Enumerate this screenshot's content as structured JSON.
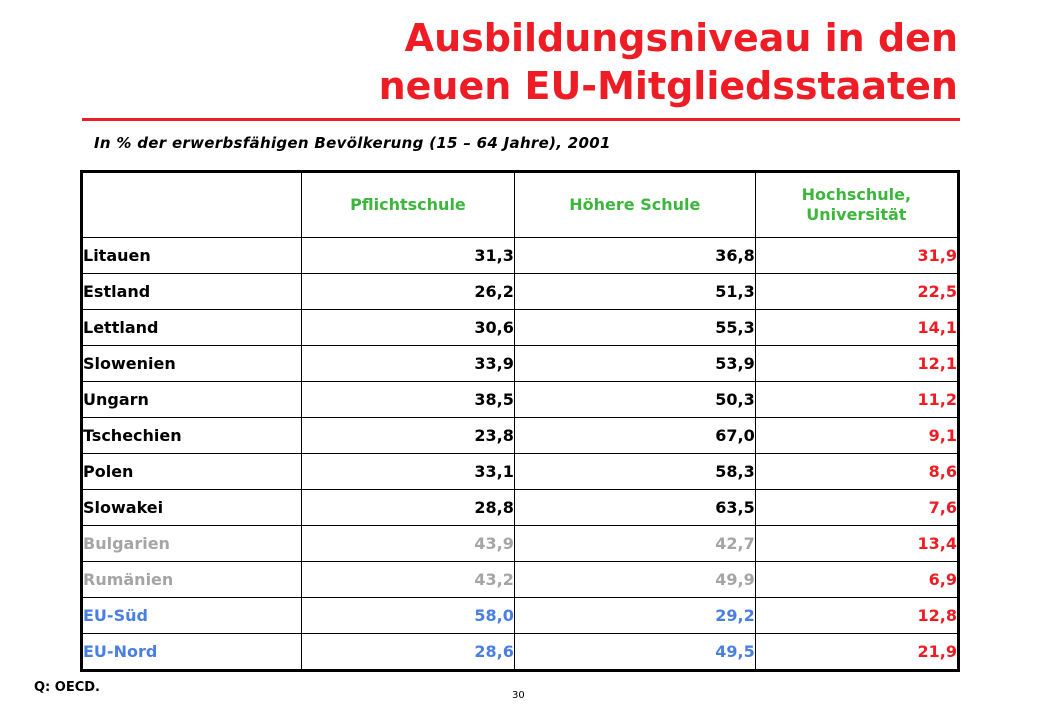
{
  "title": {
    "line1": "Ausbildungsniveau in den",
    "line2": "neuen EU-Mitgliedsstaaten"
  },
  "subtitle": "In % der erwerbsfähigen Bevölkerung (15 – 64 Jahre), 2001",
  "table": {
    "columns": [
      "Pflichtschule",
      "Höhere Schule",
      "Hochschule,",
      "Universität"
    ],
    "rows": [
      {
        "country": "Litauen",
        "v1": "31,3",
        "v2": "36,8",
        "v3": "31,9",
        "group": "black"
      },
      {
        "country": "Estland",
        "v1": "26,2",
        "v2": "51,3",
        "v3": "22,5",
        "group": "black"
      },
      {
        "country": "Lettland",
        "v1": "30,6",
        "v2": "55,3",
        "v3": "14,1",
        "group": "black"
      },
      {
        "country": "Slowenien",
        "v1": "33,9",
        "v2": "53,9",
        "v3": "12,1",
        "group": "black"
      },
      {
        "country": "Ungarn",
        "v1": "38,5",
        "v2": "50,3",
        "v3": "11,2",
        "group": "black"
      },
      {
        "country": "Tschechien",
        "v1": "23,8",
        "v2": "67,0",
        "v3": "9,1",
        "group": "black"
      },
      {
        "country": "Polen",
        "v1": "33,1",
        "v2": "58,3",
        "v3": "8,6",
        "group": "black"
      },
      {
        "country": "Slowakei",
        "v1": "28,8",
        "v2": "63,5",
        "v3": "7,6",
        "group": "black"
      },
      {
        "country": "Bulgarien",
        "v1": "43,9",
        "v2": "42,7",
        "v3": "13,4",
        "group": "gray"
      },
      {
        "country": "Rumänien",
        "v1": "43,2",
        "v2": "49,9",
        "v3": "6,9",
        "group": "gray"
      },
      {
        "country": "EU-Süd",
        "v1": "58,0",
        "v2": "29,2",
        "v3": "12,8",
        "group": "blue"
      },
      {
        "country": "EU-Nord",
        "v1": "28,6",
        "v2": "49,5",
        "v3": "21,9",
        "group": "blue"
      }
    ]
  },
  "colors": {
    "title": "#ee1c24",
    "header": "#3cb63c",
    "black": "#000000",
    "gray": "#a5a5a5",
    "blue": "#4a7fe2",
    "third_column": "#ee1c24"
  },
  "footer": {
    "source": "Q: OECD.",
    "page_number": "30"
  }
}
